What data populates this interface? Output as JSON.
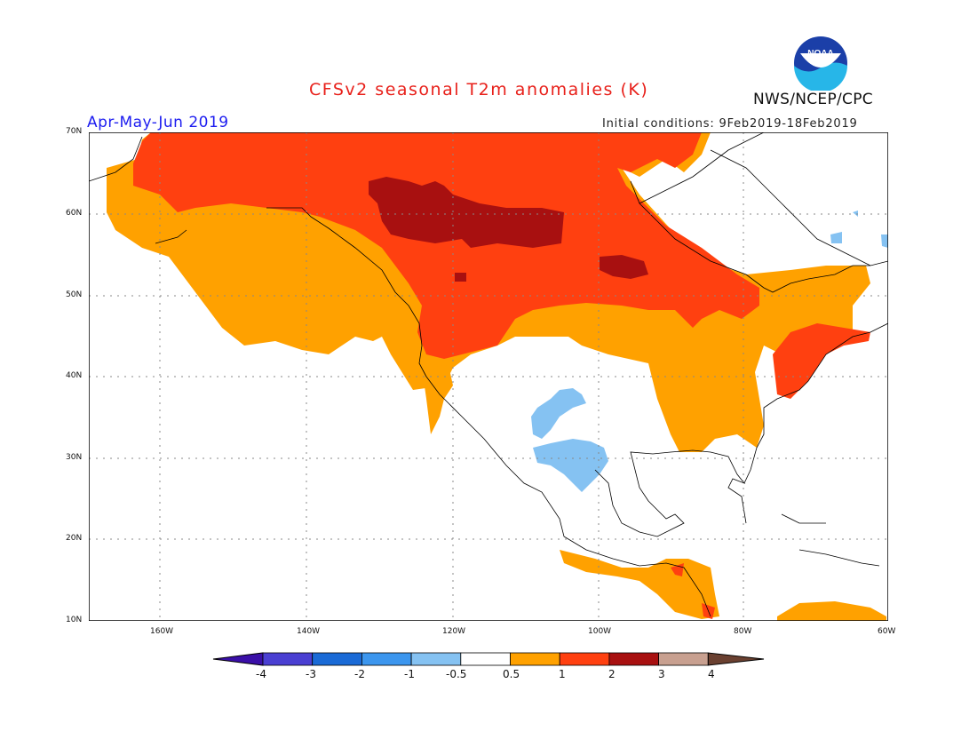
{
  "header": {
    "title": "CFSv2 seasonal T2m anomalies (K)",
    "period": "Apr-May-Jun 2019",
    "initial_conditions": "Initial conditions: 9Feb2019-18Feb2019",
    "agency": "NWS/NCEP/CPC",
    "logo_text": "NOAA"
  },
  "map": {
    "latitude_labels": [
      "70N",
      "60N",
      "50N",
      "40N",
      "30N",
      "20N",
      "10N"
    ],
    "longitude_labels": [
      "160W",
      "140W",
      "120W",
      "100W",
      "80W",
      "60W"
    ],
    "grid": "dotted"
  },
  "legend": {
    "labels": [
      "-4",
      "-3",
      "-2",
      "-1",
      "-0.5",
      "0.5",
      "1",
      "2",
      "3",
      "4"
    ],
    "colors": [
      "#3a0fa8",
      "#4a3fd2",
      "#1a6ad6",
      "#3c96ee",
      "#85c2f2",
      "#ffffff",
      "#ffa100",
      "#ff4010",
      "#a81010",
      "#c8a090",
      "#6a4030"
    ]
  }
}
